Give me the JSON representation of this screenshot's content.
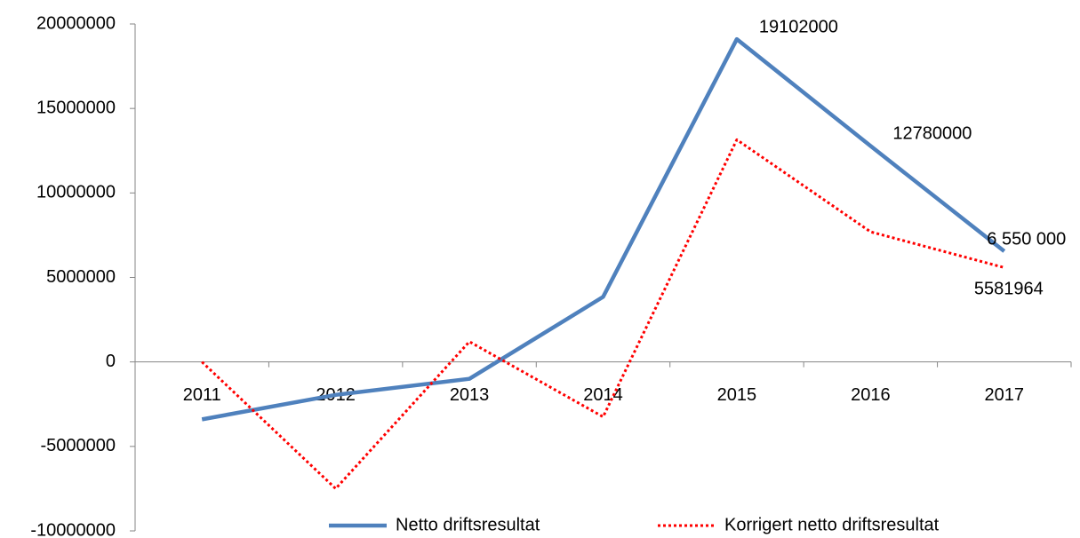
{
  "chart_data": {
    "type": "line",
    "categories": [
      "2011",
      "2012",
      "2013",
      "2014",
      "2015",
      "2016",
      "2017"
    ],
    "series": [
      {
        "name": "Netto driftsresultat",
        "color": "#4f81bd",
        "dash": "solid",
        "values": [
          -3400000,
          -1950000,
          -1000000,
          3850000,
          19102000,
          12780000,
          6550000
        ],
        "value_labels": [
          null,
          null,
          null,
          null,
          "19102000",
          "12780000",
          "6 550 000"
        ]
      },
      {
        "name": "Korrigert netto driftsresultat",
        "color": "#ff0000",
        "dash": "dotted",
        "values": [
          0,
          -7500000,
          1200000,
          -3250000,
          13150000,
          7700000,
          5581964
        ],
        "value_labels": [
          null,
          null,
          null,
          null,
          null,
          null,
          "5581964"
        ]
      }
    ],
    "ylim": [
      -10000000,
      20000000
    ],
    "yticks": [
      -10000000,
      -5000000,
      0,
      5000000,
      10000000,
      15000000,
      20000000
    ],
    "grid": false,
    "legend": "bottom"
  }
}
